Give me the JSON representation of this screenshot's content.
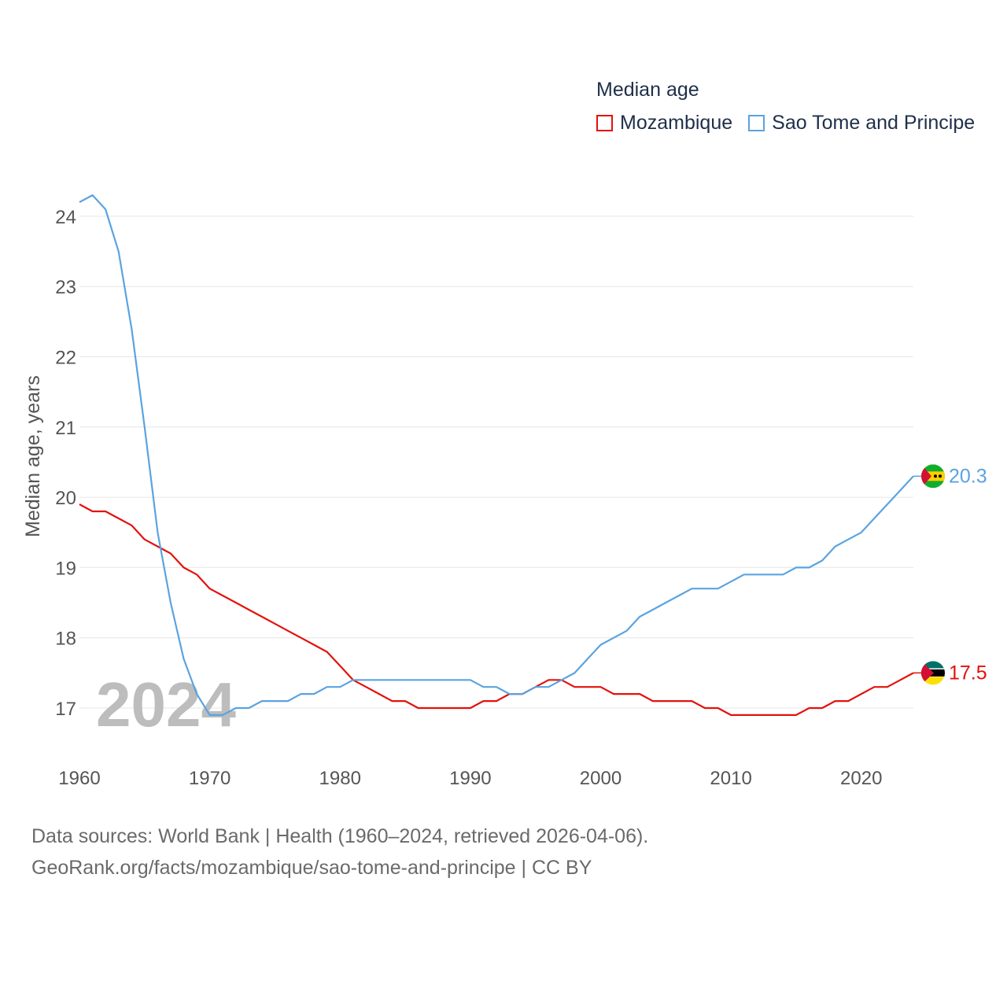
{
  "chart_data": {
    "type": "line",
    "legend_title": "Median age",
    "ylabel": "Median age, years",
    "year_label": "2024",
    "x_ticks": [
      "1960",
      "1970",
      "1980",
      "1990",
      "2000",
      "2010",
      "2020"
    ],
    "y_ticks": [
      "17",
      "18",
      "19",
      "20",
      "21",
      "22",
      "23",
      "24"
    ],
    "xlim": [
      1960,
      2024
    ],
    "ylim": [
      16.4,
      24.6
    ],
    "x": [
      1960,
      1961,
      1962,
      1963,
      1964,
      1965,
      1966,
      1967,
      1968,
      1969,
      1970,
      1971,
      1972,
      1973,
      1974,
      1975,
      1976,
      1977,
      1978,
      1979,
      1980,
      1981,
      1982,
      1983,
      1984,
      1985,
      1986,
      1987,
      1988,
      1989,
      1990,
      1991,
      1992,
      1993,
      1994,
      1995,
      1996,
      1997,
      1998,
      1999,
      2000,
      2001,
      2002,
      2003,
      2004,
      2005,
      2006,
      2007,
      2008,
      2009,
      2010,
      2011,
      2012,
      2013,
      2014,
      2015,
      2016,
      2017,
      2018,
      2019,
      2020,
      2021,
      2022,
      2023,
      2024
    ],
    "series": [
      {
        "name": "Mozambique",
        "color": "#e3120b",
        "end_label": "17.5",
        "values": [
          19.9,
          19.8,
          19.8,
          19.7,
          19.6,
          19.4,
          19.3,
          19.2,
          19.0,
          18.9,
          18.7,
          18.6,
          18.5,
          18.4,
          18.3,
          18.2,
          18.1,
          18.0,
          17.9,
          17.8,
          17.6,
          17.4,
          17.3,
          17.2,
          17.1,
          17.1,
          17.0,
          17.0,
          17.0,
          17.0,
          17.0,
          17.1,
          17.1,
          17.2,
          17.2,
          17.3,
          17.4,
          17.4,
          17.3,
          17.3,
          17.3,
          17.2,
          17.2,
          17.2,
          17.1,
          17.1,
          17.1,
          17.1,
          17.0,
          17.0,
          16.9,
          16.9,
          16.9,
          16.9,
          16.9,
          16.9,
          17.0,
          17.0,
          17.1,
          17.1,
          17.2,
          17.3,
          17.3,
          17.4,
          17.5
        ]
      },
      {
        "name": "Sao Tome and Principe",
        "color": "#5ba3e0",
        "end_label": "20.3",
        "values": [
          24.2,
          24.3,
          24.1,
          23.5,
          22.4,
          21.0,
          19.5,
          18.5,
          17.7,
          17.2,
          16.9,
          16.9,
          17.0,
          17.0,
          17.1,
          17.1,
          17.1,
          17.2,
          17.2,
          17.3,
          17.3,
          17.4,
          17.4,
          17.4,
          17.4,
          17.4,
          17.4,
          17.4,
          17.4,
          17.4,
          17.4,
          17.3,
          17.3,
          17.2,
          17.2,
          17.3,
          17.3,
          17.4,
          17.5,
          17.7,
          17.9,
          18.0,
          18.1,
          18.3,
          18.4,
          18.5,
          18.6,
          18.7,
          18.7,
          18.7,
          18.8,
          18.9,
          18.9,
          18.9,
          18.9,
          19.0,
          19.0,
          19.1,
          19.3,
          19.4,
          19.5,
          19.7,
          19.9,
          20.1,
          20.3
        ]
      }
    ]
  },
  "legend": {
    "title": "Median age",
    "items": [
      "Mozambique",
      "Sao Tome and Principe"
    ]
  },
  "footer": {
    "line1": "Data sources: World Bank | Health (1960–2024, retrieved 2026-04-06).",
    "line2": "GeoRank.org/facts/mozambique/sao-tome-and-principe | CC BY"
  },
  "colors": {
    "mozambique": "#e3120b",
    "sao_tome": "#5ba3e0",
    "grid": "#e6e6e6",
    "year_label": "#bdbdbd"
  }
}
